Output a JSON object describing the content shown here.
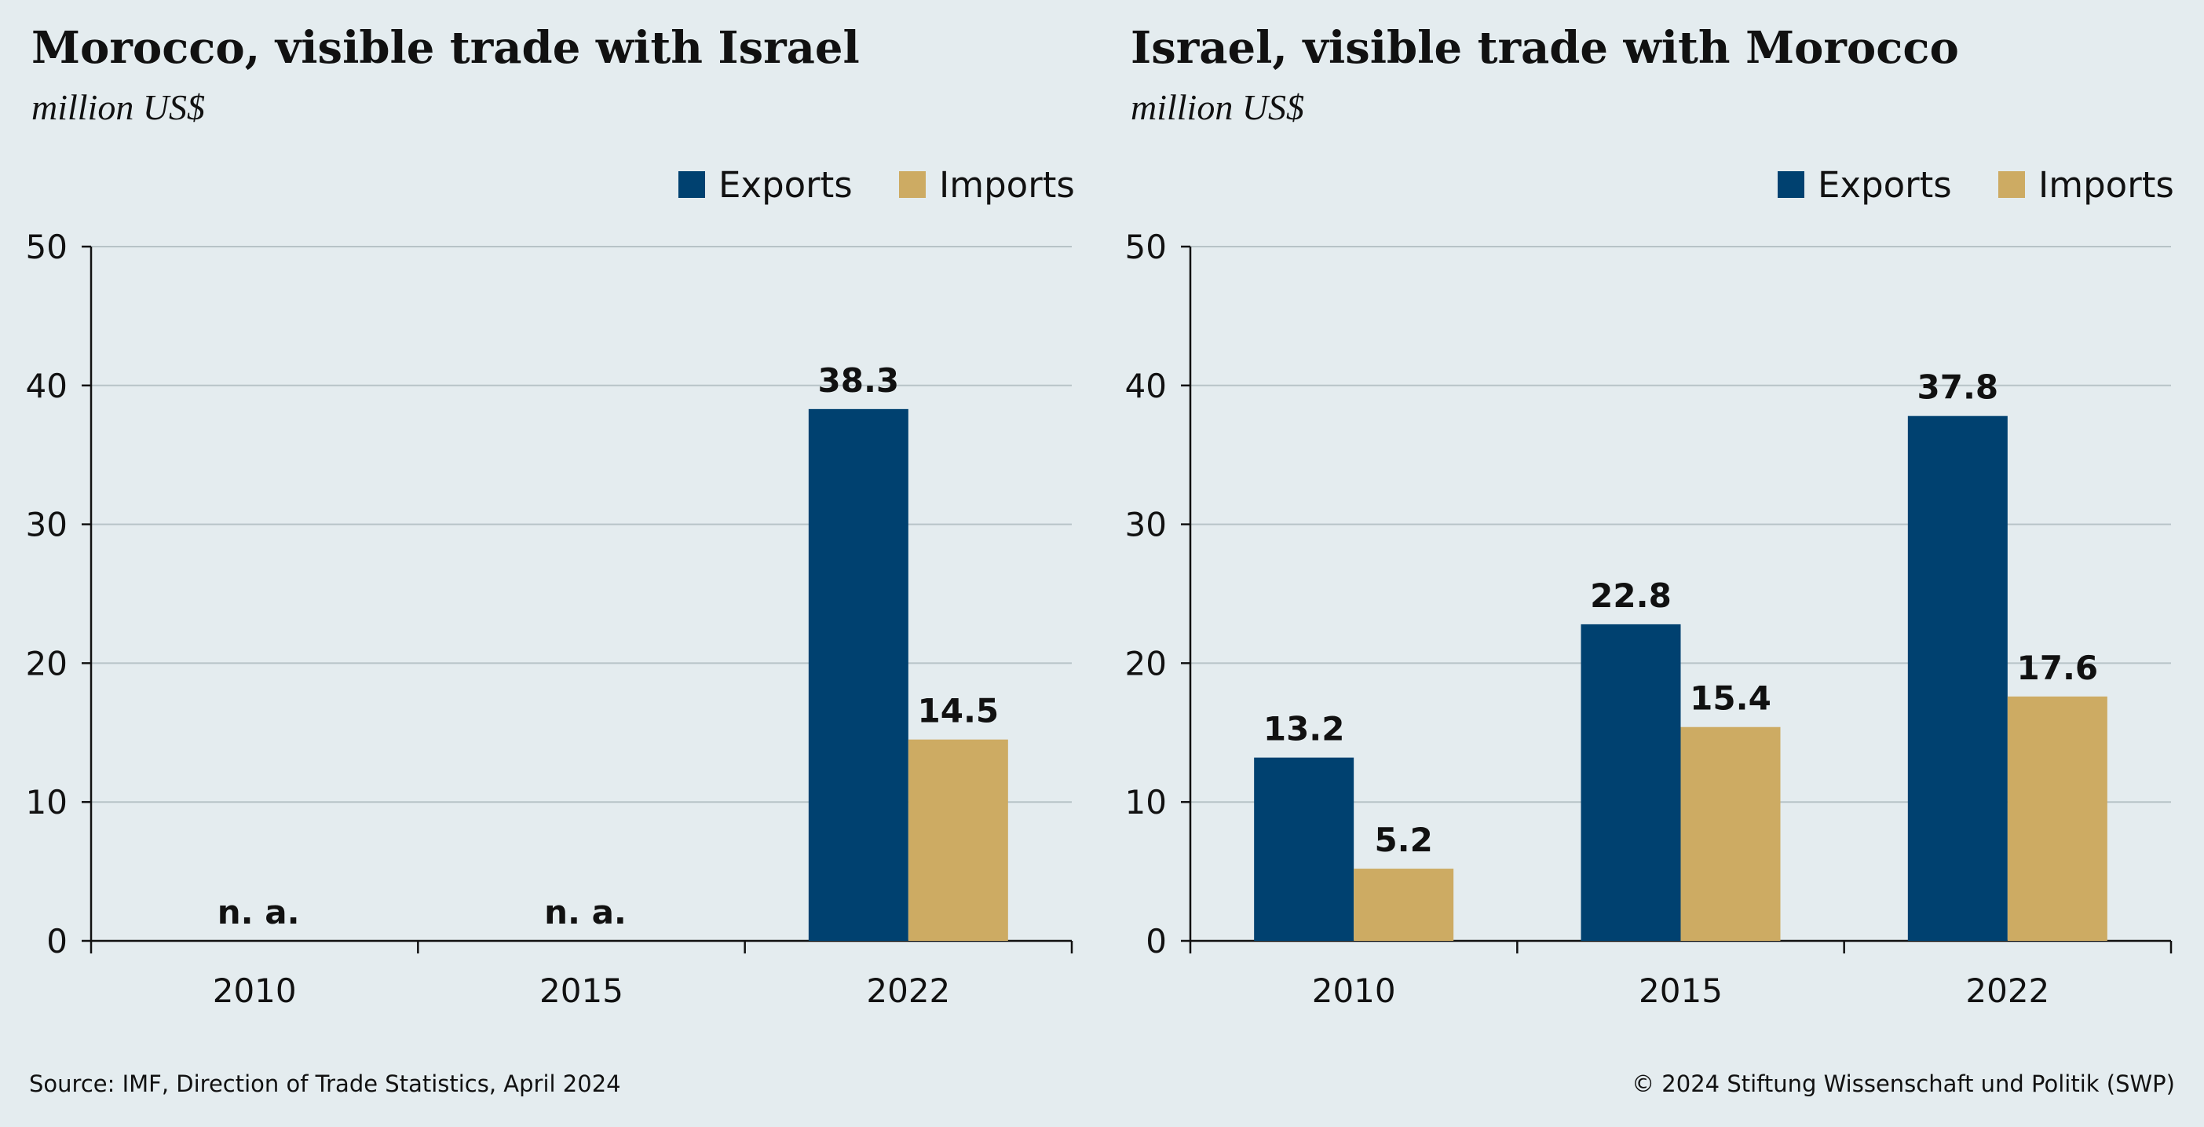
{
  "colors": {
    "background": "#e4ecef",
    "exports": "#004170",
    "imports": "#cdab63",
    "gridline": "#b7c3c7",
    "axis": "#111111"
  },
  "chart_data": [
    {
      "type": "bar",
      "title": "Morocco, visible trade with Israel",
      "subtitle": "million US$",
      "categories": [
        "2010",
        "2015",
        "2022"
      ],
      "series": [
        {
          "name": "Exports",
          "values": [
            null,
            null,
            38.3
          ]
        },
        {
          "name": "Imports",
          "values": [
            null,
            null,
            14.5
          ]
        }
      ],
      "missing_label": "n. a.",
      "ylim": [
        0,
        50
      ],
      "yticks": [
        0,
        10,
        20,
        30,
        40,
        50
      ],
      "grid": true,
      "legend": "top-right"
    },
    {
      "type": "bar",
      "title": "Israel, visible trade with Morocco",
      "subtitle": "million US$",
      "categories": [
        "2010",
        "2015",
        "2022"
      ],
      "series": [
        {
          "name": "Exports",
          "values": [
            13.2,
            22.8,
            37.8
          ]
        },
        {
          "name": "Imports",
          "values": [
            5.2,
            15.4,
            17.6
          ]
        }
      ],
      "ylim": [
        0,
        50
      ],
      "yticks": [
        0,
        10,
        20,
        30,
        40,
        50
      ],
      "grid": true,
      "legend": "top-right"
    }
  ],
  "footer": {
    "source": "Source: IMF, Direction of Trade Statistics, April 2024",
    "copyright": "© 2024 Stiftung Wissenschaft und Politik (SWP)"
  }
}
